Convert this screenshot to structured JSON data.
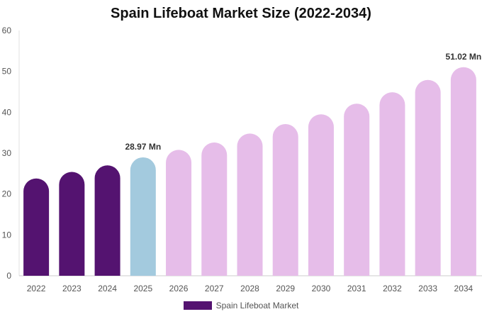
{
  "chart_data": {
    "type": "bar",
    "title": "Spain Lifeboat Market Size (2022-2034)",
    "xlabel": "",
    "ylabel": "",
    "categories": [
      "2022",
      "2023",
      "2024",
      "2025",
      "2026",
      "2027",
      "2028",
      "2029",
      "2030",
      "2031",
      "2032",
      "2033",
      "2034"
    ],
    "series": [
      {
        "name": "Spain Lifeboat Market",
        "values": [
          23.8,
          25.4,
          27.0,
          28.97,
          30.8,
          32.6,
          34.8,
          37.1,
          39.5,
          42.1,
          44.9,
          47.9,
          51.02
        ]
      }
    ],
    "bar_colors": [
      "#541370",
      "#541370",
      "#541370",
      "#a3cade",
      "#e6bde9",
      "#e6bde9",
      "#e6bde9",
      "#e6bde9",
      "#e6bde9",
      "#e6bde9",
      "#e6bde9",
      "#e6bde9",
      "#e6bde9"
    ],
    "data_labels": [
      {
        "index": 3,
        "text": "28.97 Mn"
      },
      {
        "index": 12,
        "text": "51.02 Mn"
      }
    ],
    "ylim": [
      0,
      60
    ],
    "yticks": [
      0,
      10,
      20,
      30,
      40,
      50,
      60
    ],
    "grid": false,
    "legend_position": "bottom",
    "legend_color": "#541370"
  }
}
